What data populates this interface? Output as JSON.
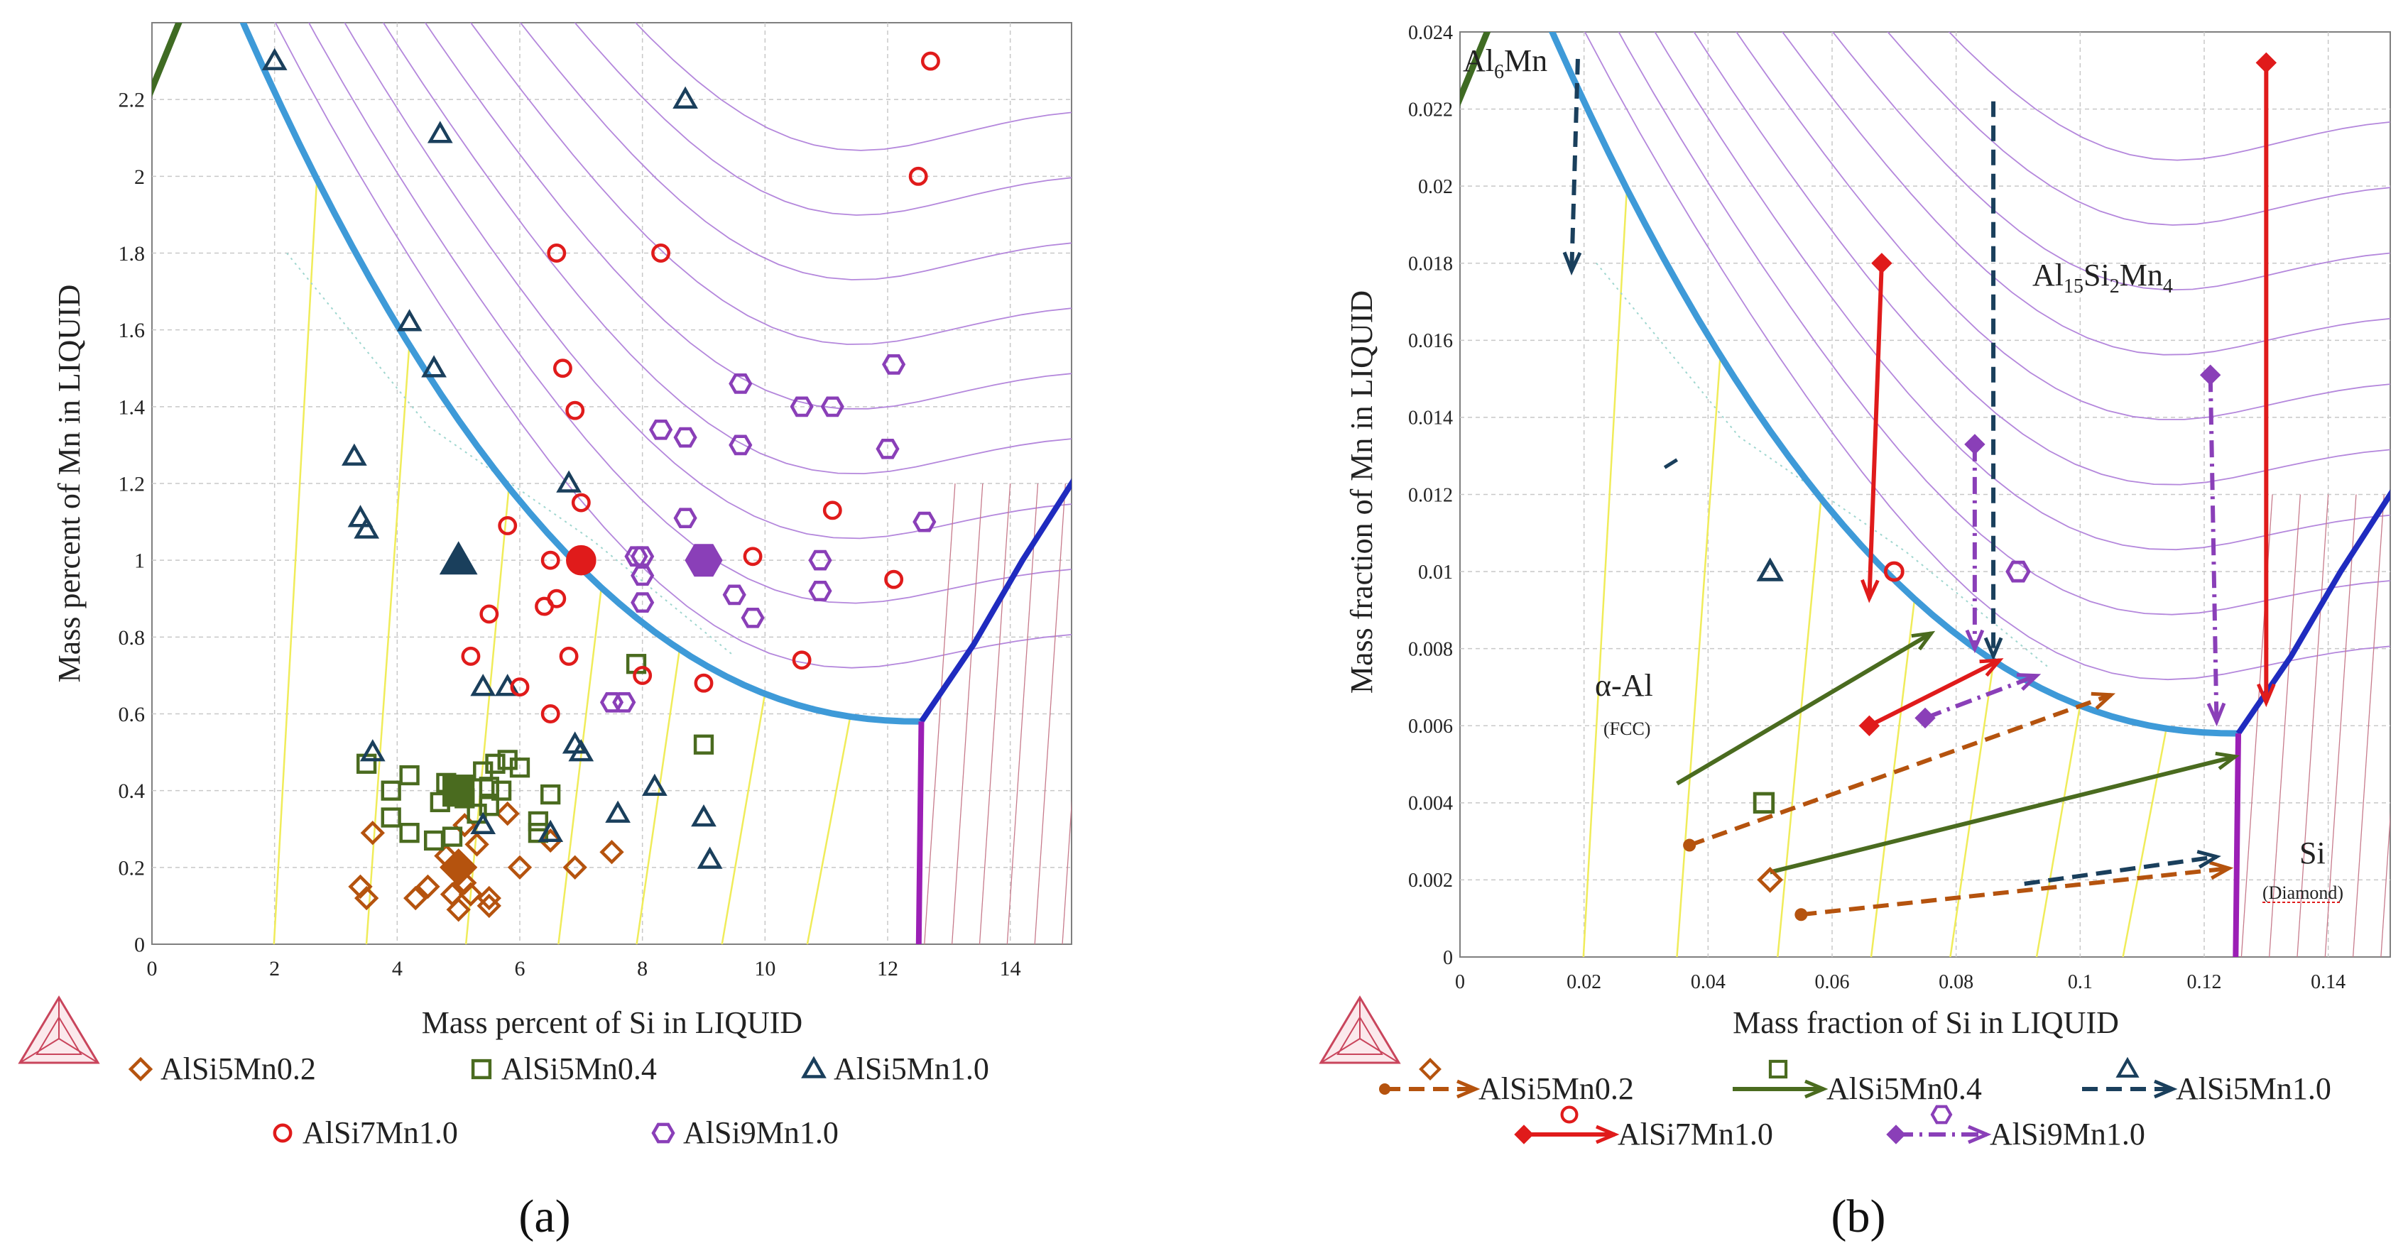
{
  "colors": {
    "grid": "#c8c8c8",
    "iso": "#b487dc",
    "tie": "#f0ec5a",
    "boundary": "#3e9ad8",
    "dark_boundary": "#1f2bbf",
    "magenta": "#9b1fb5",
    "al6mn_green": "#3f6b23",
    "pink_lines": "#c77b8c",
    "series_02": "#b5530e",
    "series_04": "#4a6b1f",
    "series_10a": "#1a3f5c",
    "series_07": "#e01b1b",
    "series_09": "#8a3fb8"
  },
  "chart_data": [
    {
      "type": "scatter",
      "panel_label": "(a)",
      "xlabel": "Mass percent of Si in LIQUID",
      "ylabel": "Mass percent of Mn in LIQUID",
      "xlim": [
        0,
        15
      ],
      "ylim": [
        0,
        2.4
      ],
      "xticks": [
        0,
        2,
        4,
        6,
        8,
        10,
        12,
        14
      ],
      "yticks": [
        0,
        0.2,
        0.4,
        0.6,
        0.8,
        1,
        1.2,
        1.4,
        1.6,
        1.8,
        2,
        2.2
      ],
      "xtick_labels": [
        "0",
        "2",
        "4",
        "6",
        "8",
        "10",
        "12",
        "14"
      ],
      "ytick_labels": [
        "0",
        "0.2",
        "0.4",
        "0.6",
        "0.8",
        "1",
        "1.2",
        "1.4",
        "1.6",
        "1.8",
        "2",
        "2.2"
      ],
      "series": [
        {
          "name": "AlSi5Mn0.2",
          "marker": "diamond",
          "color": "#b5530e",
          "points": [
            [
              3.4,
              0.15
            ],
            [
              3.5,
              0.12
            ],
            [
              3.6,
              0.29
            ],
            [
              4.3,
              0.12
            ],
            [
              4.5,
              0.15
            ],
            [
              4.8,
              0.23
            ],
            [
              4.9,
              0.13
            ],
            [
              5.0,
              0.09
            ],
            [
              5.1,
              0.16
            ],
            [
              5.1,
              0.31
            ],
            [
              5.2,
              0.13
            ],
            [
              5.3,
              0.26
            ],
            [
              5.5,
              0.12
            ],
            [
              5.5,
              0.1
            ],
            [
              5.8,
              0.34
            ],
            [
              6.0,
              0.2
            ],
            [
              6.5,
              0.27
            ],
            [
              6.9,
              0.2
            ],
            [
              7.5,
              0.24
            ]
          ],
          "mean": [
            5.0,
            0.2
          ]
        },
        {
          "name": "AlSi5Mn0.4",
          "marker": "square",
          "color": "#4a6b1f",
          "points": [
            [
              3.5,
              0.47
            ],
            [
              3.9,
              0.33
            ],
            [
              3.9,
              0.4
            ],
            [
              4.2,
              0.44
            ],
            [
              4.2,
              0.29
            ],
            [
              4.6,
              0.27
            ],
            [
              4.7,
              0.37
            ],
            [
              4.8,
              0.42
            ],
            [
              4.9,
              0.28
            ],
            [
              5.1,
              0.38
            ],
            [
              5.3,
              0.34
            ],
            [
              5.4,
              0.45
            ],
            [
              5.5,
              0.36
            ],
            [
              5.5,
              0.41
            ],
            [
              5.6,
              0.47
            ],
            [
              5.7,
              0.4
            ],
            [
              5.8,
              0.48
            ],
            [
              6.0,
              0.46
            ],
            [
              6.3,
              0.32
            ],
            [
              6.5,
              0.39
            ],
            [
              6.3,
              0.29
            ],
            [
              7.9,
              0.73
            ],
            [
              9.0,
              0.52
            ]
          ],
          "mean": [
            5.0,
            0.4
          ]
        },
        {
          "name": "AlSi5Mn1.0",
          "marker": "triangle",
          "color": "#1a3f5c",
          "points": [
            [
              2.0,
              2.3
            ],
            [
              4.7,
              2.11
            ],
            [
              8.7,
              2.2
            ],
            [
              4.2,
              1.62
            ],
            [
              4.6,
              1.5
            ],
            [
              3.3,
              1.27
            ],
            [
              3.4,
              1.11
            ],
            [
              3.5,
              1.08
            ],
            [
              6.8,
              1.2
            ],
            [
              5.4,
              0.67
            ],
            [
              5.8,
              0.67
            ],
            [
              3.6,
              0.5
            ],
            [
              6.9,
              0.52
            ],
            [
              7.0,
              0.5
            ],
            [
              8.2,
              0.41
            ],
            [
              7.6,
              0.34
            ],
            [
              9.0,
              0.33
            ],
            [
              9.1,
              0.22
            ],
            [
              5.4,
              0.31
            ],
            [
              6.5,
              0.29
            ]
          ],
          "mean": [
            5.0,
            1.0
          ]
        },
        {
          "name": "AlSi7Mn1.0",
          "marker": "circle",
          "color": "#e01b1b",
          "points": [
            [
              12.7,
              2.3
            ],
            [
              12.5,
              2.0
            ],
            [
              6.6,
              1.8
            ],
            [
              8.3,
              1.8
            ],
            [
              6.7,
              1.5
            ],
            [
              6.9,
              1.39
            ],
            [
              7.0,
              1.15
            ],
            [
              5.8,
              1.09
            ],
            [
              6.5,
              1.0
            ],
            [
              5.5,
              0.86
            ],
            [
              6.4,
              0.88
            ],
            [
              6.6,
              0.9
            ],
            [
              5.2,
              0.75
            ],
            [
              6.8,
              0.75
            ],
            [
              6.0,
              0.67
            ],
            [
              6.5,
              0.6
            ],
            [
              8.0,
              0.7
            ],
            [
              9.0,
              0.68
            ],
            [
              9.8,
              1.01
            ],
            [
              10.6,
              0.74
            ],
            [
              11.1,
              1.13
            ],
            [
              12.1,
              0.95
            ]
          ],
          "mean": [
            7.0,
            1.0
          ]
        },
        {
          "name": "AlSi9Mn1.0",
          "marker": "hexagon",
          "color": "#8a3fb8",
          "points": [
            [
              12.1,
              1.51
            ],
            [
              9.6,
              1.46
            ],
            [
              10.6,
              1.4
            ],
            [
              11.1,
              1.4
            ],
            [
              12.0,
              1.29
            ],
            [
              8.3,
              1.34
            ],
            [
              8.7,
              1.32
            ],
            [
              9.6,
              1.3
            ],
            [
              8.7,
              1.11
            ],
            [
              12.6,
              1.1
            ],
            [
              7.9,
              1.01
            ],
            [
              8.0,
              1.01
            ],
            [
              10.9,
              1.0
            ],
            [
              8.0,
              0.96
            ],
            [
              9.5,
              0.91
            ],
            [
              10.9,
              0.92
            ],
            [
              8.0,
              0.89
            ],
            [
              9.8,
              0.85
            ],
            [
              7.5,
              0.63
            ],
            [
              7.7,
              0.63
            ]
          ],
          "mean": [
            9.0,
            1.0
          ]
        }
      ],
      "legend": [
        {
          "label": "AlSi5Mn0.2",
          "series": 0
        },
        {
          "label": "AlSi5Mn0.4",
          "series": 1
        },
        {
          "label": "AlSi5Mn1.0",
          "series": 2
        },
        {
          "label": "AlSi7Mn1.0",
          "series": 3
        },
        {
          "label": "AlSi9Mn1.0",
          "series": 4
        }
      ]
    },
    {
      "type": "line",
      "panel_label": "(b)",
      "xlabel": "Mass fraction of Si in LIQUID",
      "ylabel": "Mass fraction of Mn in LIQUID",
      "xlim": [
        0,
        0.15
      ],
      "ylim": [
        0,
        0.024
      ],
      "xticks": [
        0,
        0.02,
        0.04,
        0.06,
        0.08,
        0.1,
        0.12,
        0.14
      ],
      "yticks": [
        0,
        0.002,
        0.004,
        0.006,
        0.008,
        0.01,
        0.012,
        0.014,
        0.016,
        0.018,
        0.02,
        0.022,
        0.024
      ],
      "xtick_labels": [
        "0",
        "0.02",
        "0.04",
        "0.06",
        "0.08",
        "0.1",
        "0.12",
        "0.14"
      ],
      "ytick_labels": [
        "0",
        "0.002",
        "0.004",
        "0.006",
        "0.008",
        "0.01",
        "0.012",
        "0.014",
        "0.016",
        "0.018",
        "0.02",
        "0.022",
        "0.024"
      ],
      "annotations": {
        "al6mn": "Al6Mn",
        "al15si2mn4": "Al15Si2Mn4",
        "alpha_al": "α-Al",
        "fcc": "(FCC)",
        "si": "Si",
        "diamond": "(Diamond)"
      },
      "paths": [
        {
          "series": "AlSi5Mn0.2",
          "color": "#b5530e",
          "style": "dashed",
          "start_marker": "dot",
          "segments": [
            [
              [
                0.037,
                0.0029
              ],
              [
                0.105,
                0.0068
              ]
            ],
            [
              [
                0.055,
                0.0011
              ],
              [
                0.124,
                0.0023
              ]
            ]
          ],
          "point": [
            0.05,
            0.002
          ]
        },
        {
          "series": "AlSi5Mn0.4",
          "color": "#4a6b1f",
          "style": "solid",
          "segments": [
            [
              [
                0.035,
                0.0045
              ],
              [
                0.076,
                0.0084
              ]
            ],
            [
              [
                0.05,
                0.0022
              ],
              [
                0.125,
                0.0052
              ]
            ]
          ],
          "point": [
            0.049,
            0.004
          ]
        },
        {
          "series": "AlSi5Mn1.0",
          "color": "#1a3f5c",
          "style": "dashed",
          "segments": [
            [
              [
                0.019,
                0.0233
              ],
              [
                0.018,
                0.0178
              ]
            ],
            [
              [
                0.086,
                0.0222
              ],
              [
                0.086,
                0.0078
              ]
            ],
            [
              [
                0.091,
                0.0019
              ],
              [
                0.122,
                0.0026
              ]
            ]
          ],
          "point": [
            0.05,
            0.01
          ]
        },
        {
          "series": "AlSi7Mn1.0",
          "color": "#e01b1b",
          "style": "solid",
          "start_marker": "diamond",
          "segments": [
            [
              [
                0.068,
                0.018
              ],
              [
                0.066,
                0.0093
              ]
            ],
            [
              [
                0.066,
                0.006
              ],
              [
                0.087,
                0.0077
              ]
            ],
            [
              [
                0.13,
                0.0232
              ],
              [
                0.13,
                0.0066
              ]
            ]
          ],
          "point": [
            0.07,
            0.01
          ]
        },
        {
          "series": "AlSi9Mn1.0",
          "color": "#8a3fb8",
          "style": "dashdot",
          "start_marker": "diamond",
          "segments": [
            [
              [
                0.083,
                0.0133
              ],
              [
                0.083,
                0.008
              ]
            ],
            [
              [
                0.121,
                0.0151
              ],
              [
                0.122,
                0.0061
              ]
            ],
            [
              [
                0.075,
                0.0062
              ],
              [
                0.093,
                0.0073
              ]
            ]
          ],
          "point": [
            0.09,
            0.01
          ]
        }
      ],
      "legend": [
        {
          "label": "AlSi5Mn0.2",
          "series": 0
        },
        {
          "label": "AlSi5Mn0.4",
          "series": 1
        },
        {
          "label": "AlSi5Mn1.0",
          "series": 2
        },
        {
          "label": "AlSi7Mn1.0",
          "series": 3
        },
        {
          "label": "AlSi9Mn1.0",
          "series": 4
        }
      ]
    }
  ]
}
